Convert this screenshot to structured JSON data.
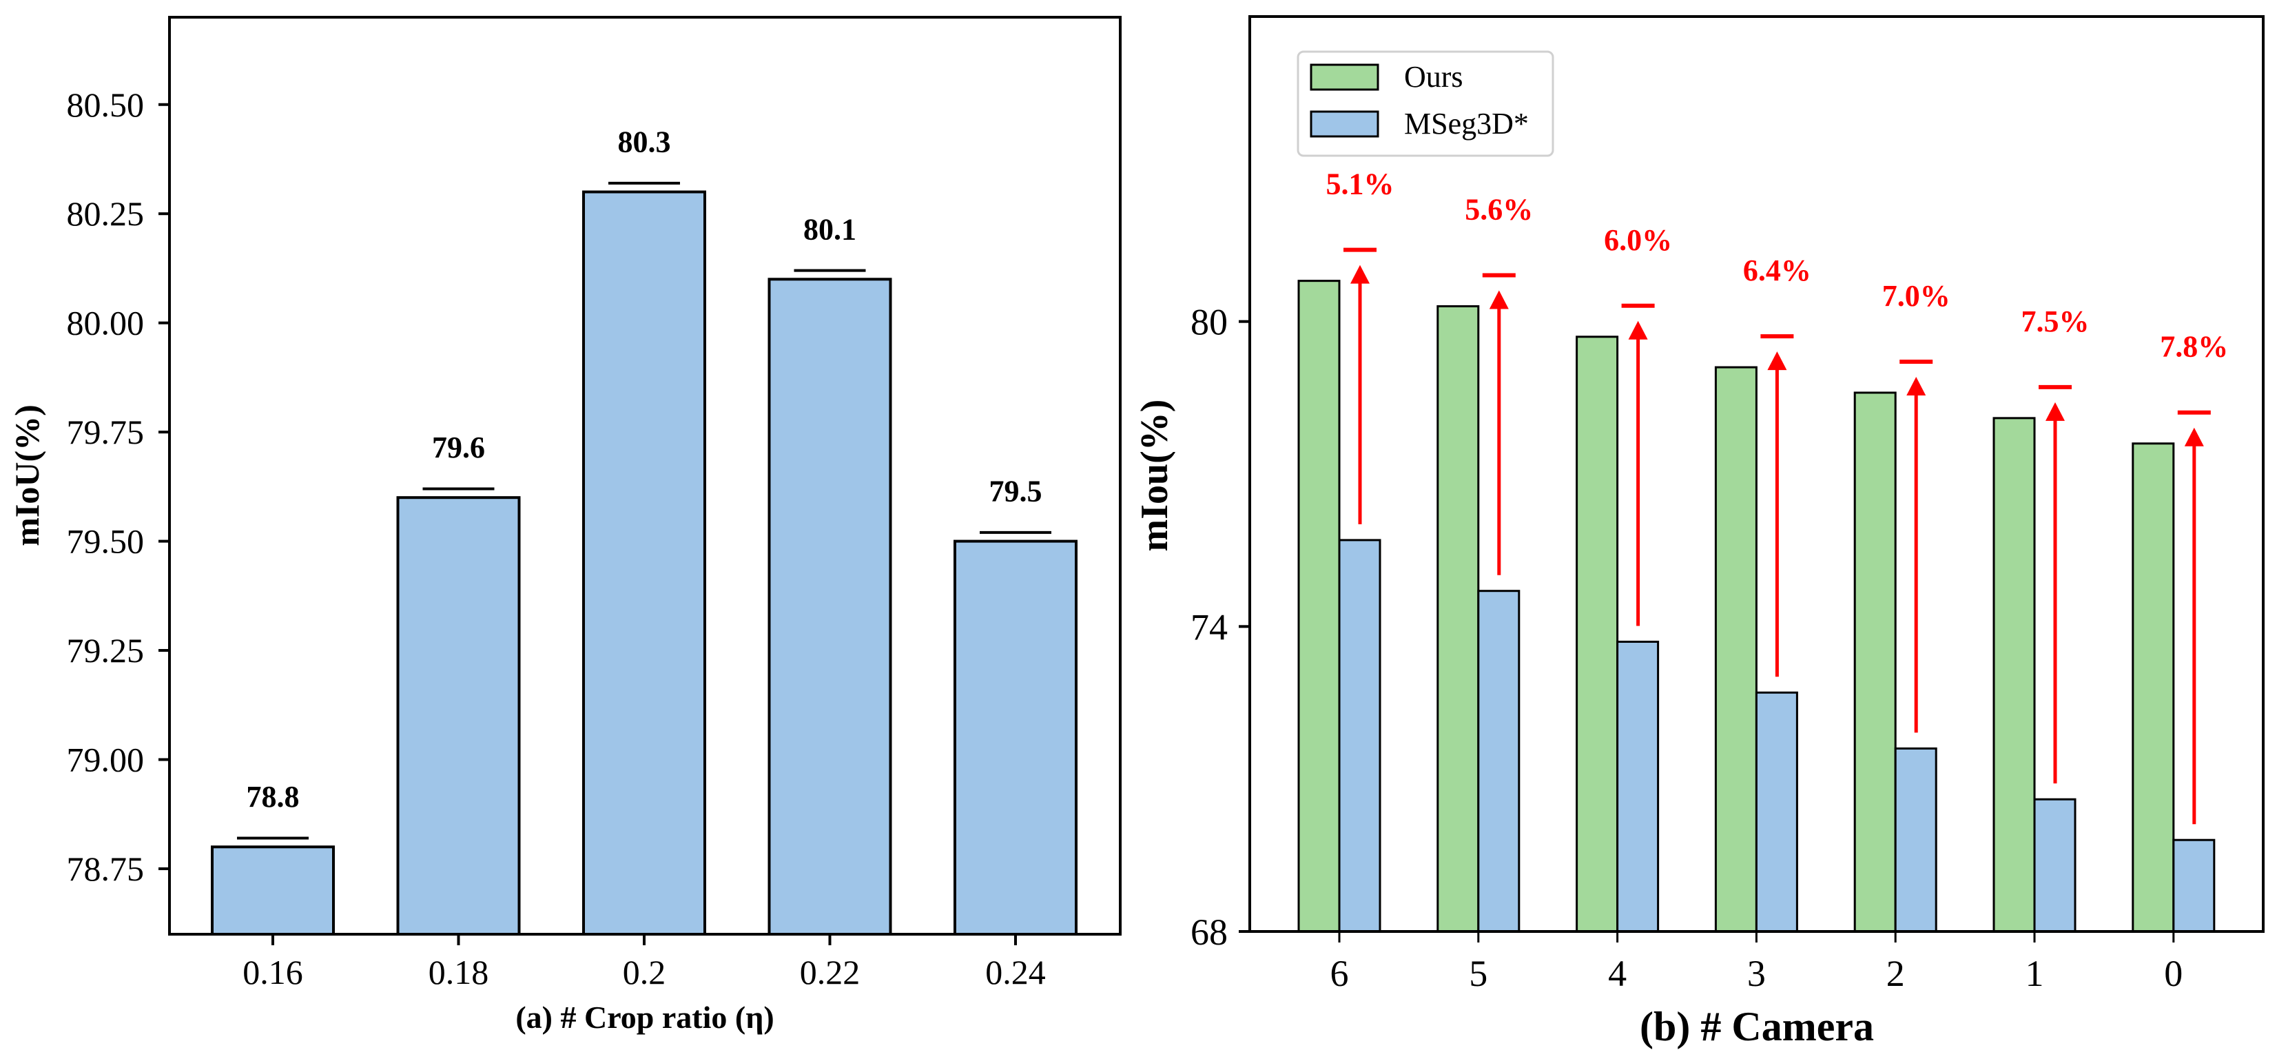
{
  "chart_data": [
    {
      "type": "bar",
      "title": "",
      "xlabel": "(a) # Crop ratio (η)",
      "ylabel": "mIoU(%)",
      "categories": [
        "0.16",
        "0.18",
        "0.2",
        "0.22",
        "0.24"
      ],
      "values": [
        78.8,
        79.6,
        80.3,
        80.1,
        79.5
      ],
      "data_labels": [
        "78.8",
        "79.6",
        "80.3",
        "80.1",
        "79.5"
      ],
      "error": 0.02,
      "ylim": [
        78.6,
        80.7
      ],
      "yticks": [
        78.75,
        79.0,
        79.25,
        79.5,
        79.75,
        80.0,
        80.25,
        80.5
      ],
      "ytick_labels": [
        "78.75",
        "79.00",
        "79.25",
        "79.50",
        "79.75",
        "80.00",
        "80.25",
        "80.50"
      ],
      "grid": false,
      "color": "#9fc5e8"
    },
    {
      "type": "bar",
      "title": "",
      "xlabel": "(b) # Camera",
      "ylabel": "mIou(%)",
      "categories": [
        "6",
        "5",
        "4",
        "3",
        "2",
        "1",
        "0"
      ],
      "series": [
        {
          "name": "Ours",
          "values": [
            80.8,
            80.3,
            79.7,
            79.1,
            78.6,
            78.1,
            77.6
          ],
          "color": "#a3d99b"
        },
        {
          "name": "MSeg3D*",
          "values": [
            75.7,
            74.7,
            73.7,
            72.7,
            71.6,
            70.6,
            69.8
          ],
          "color": "#9fc5e8"
        }
      ],
      "annotations": [
        "5.1%",
        "5.6%",
        "6.0%",
        "6.4%",
        "7.0%",
        "7.5%",
        "7.8%"
      ],
      "annotation_color": "#ff0000",
      "ylim": [
        68,
        86
      ],
      "yticks": [
        68,
        74,
        80
      ],
      "ytick_labels": [
        "68",
        "74",
        "80"
      ],
      "legend": "top-left",
      "grid": false
    }
  ]
}
